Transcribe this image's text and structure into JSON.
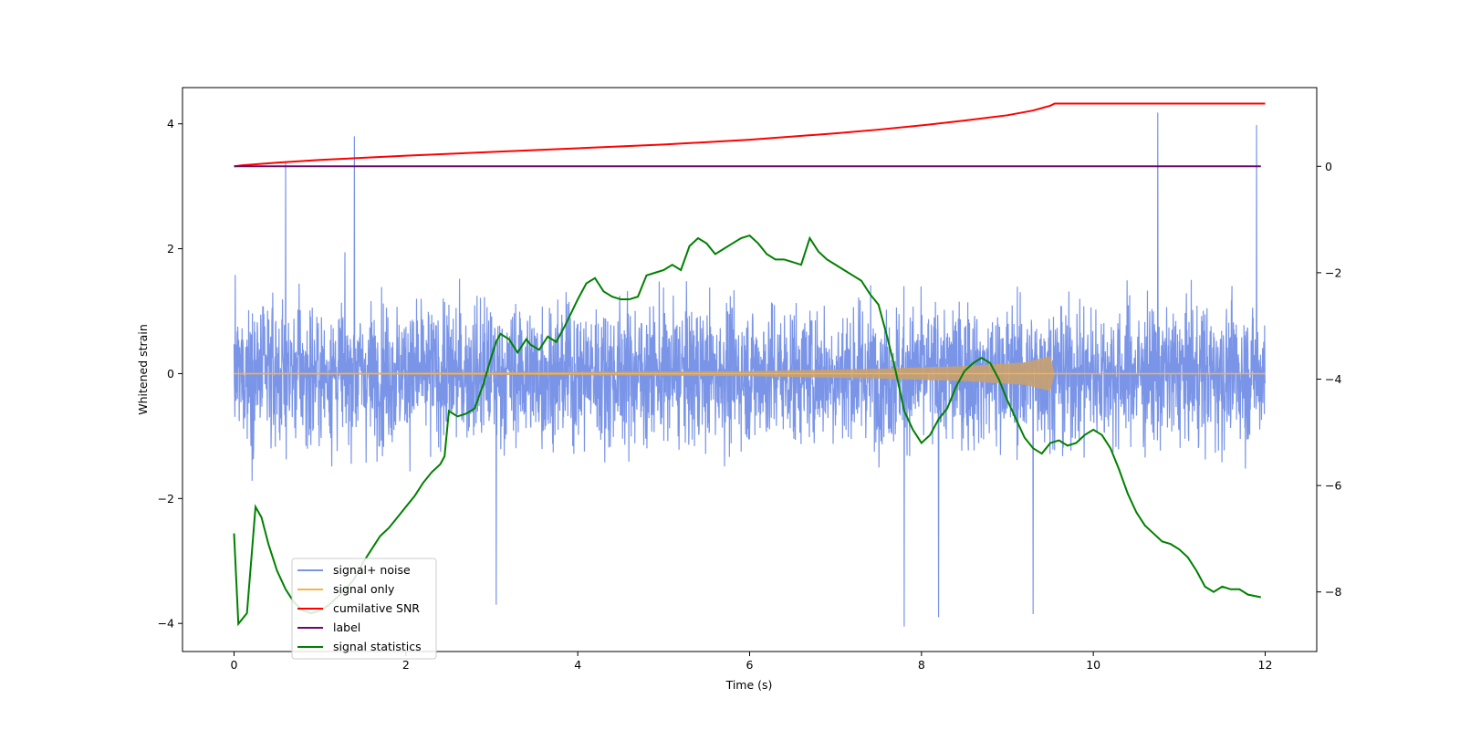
{
  "chart_data": {
    "type": "line",
    "title": "",
    "xlabel": "Time (s)",
    "ylabel": "Whitened strain",
    "y2label": "",
    "xlim": [
      -0.6,
      12.6
    ],
    "ylim": [
      -4.45,
      4.58
    ],
    "y2lim": [
      -9.12,
      1.48
    ],
    "xticks": [
      0,
      2,
      4,
      6,
      8,
      10,
      12
    ],
    "yticks": [
      -4,
      -2,
      0,
      2,
      4
    ],
    "y2ticks": [
      -8,
      -6,
      -4,
      -2,
      0
    ],
    "xtick_labels": [
      "0",
      "2",
      "4",
      "6",
      "8",
      "10",
      "12"
    ],
    "ytick_labels": [
      "−4",
      "−2",
      "0",
      "2",
      "4"
    ],
    "y2tick_labels": [
      "−8",
      "−6",
      "−4",
      "−2",
      "0"
    ],
    "legend": {
      "position": "lower-left",
      "entries": [
        "signal+ noise",
        "signal only",
        "cumilative SNR",
        "label",
        "signal statistics"
      ]
    },
    "series": [
      {
        "name": "signal+ noise",
        "axis": "left",
        "color": "#7a95e8",
        "description": "whitened noise samples, 0-12 s",
        "amplitude_typical": [
          -1.9,
          2.3
        ],
        "spikes": [
          [
            0.6,
            3.4
          ],
          [
            1.4,
            3.8
          ],
          [
            3.05,
            -3.7
          ],
          [
            7.8,
            -4.05
          ],
          [
            8.2,
            -3.9
          ],
          [
            9.3,
            -3.85
          ],
          [
            10.75,
            4.18
          ],
          [
            11.9,
            3.98
          ]
        ]
      },
      {
        "name": "signal only",
        "axis": "left",
        "color": "#f2b450",
        "description": "chirp signal growing in amplitude, merger at ~9.55 s",
        "envelope": [
          [
            0,
            0.01
          ],
          [
            3,
            0.02
          ],
          [
            6,
            0.04
          ],
          [
            7.5,
            0.08
          ],
          [
            8.5,
            0.12
          ],
          [
            9.2,
            0.18
          ],
          [
            9.5,
            0.28
          ],
          [
            9.55,
            0.0
          ],
          [
            12,
            0.0
          ]
        ]
      },
      {
        "name": "cumilative SNR",
        "axis": "right",
        "color": "#ff0000",
        "x": [
          0,
          0.1,
          0.5,
          1,
          2,
          3,
          4,
          5,
          6,
          7,
          7.5,
          8,
          8.5,
          9,
          9.3,
          9.5,
          9.55,
          10,
          11,
          12
        ],
        "y": [
          0,
          0.02,
          0.07,
          0.12,
          0.2,
          0.27,
          0.34,
          0.41,
          0.5,
          0.62,
          0.69,
          0.77,
          0.86,
          0.96,
          1.05,
          1.14,
          1.18,
          1.18,
          1.18,
          1.18
        ]
      },
      {
        "name": "label",
        "axis": "right",
        "color": "#6a0a6a",
        "x": [
          0,
          11.95
        ],
        "y": [
          0,
          0
        ]
      },
      {
        "name": "signal statistics",
        "axis": "right",
        "color": "#008000",
        "x": [
          0,
          0.05,
          0.15,
          0.25,
          0.32,
          0.4,
          0.5,
          0.6,
          0.7,
          0.8,
          0.9,
          1.0,
          1.1,
          1.2,
          1.3,
          1.4,
          1.5,
          1.6,
          1.7,
          1.8,
          1.9,
          2.0,
          2.1,
          2.2,
          2.3,
          2.4,
          2.45,
          2.5,
          2.6,
          2.7,
          2.8,
          2.9,
          3.0,
          3.05,
          3.1,
          3.2,
          3.3,
          3.4,
          3.45,
          3.55,
          3.65,
          3.75,
          3.85,
          4.0,
          4.1,
          4.2,
          4.3,
          4.4,
          4.5,
          4.6,
          4.7,
          4.8,
          4.9,
          5.0,
          5.1,
          5.2,
          5.3,
          5.4,
          5.5,
          5.6,
          5.7,
          5.8,
          5.9,
          6.0,
          6.1,
          6.2,
          6.3,
          6.4,
          6.5,
          6.6,
          6.7,
          6.8,
          6.9,
          7.0,
          7.1,
          7.2,
          7.3,
          7.4,
          7.5,
          7.6,
          7.7,
          7.8,
          7.9,
          8.0,
          8.1,
          8.2,
          8.3,
          8.4,
          8.5,
          8.6,
          8.7,
          8.8,
          8.9,
          9.0,
          9.1,
          9.2,
          9.3,
          9.4,
          9.5,
          9.6,
          9.7,
          9.8,
          9.9,
          10.0,
          10.1,
          10.2,
          10.3,
          10.4,
          10.5,
          10.6,
          10.7,
          10.8,
          10.9,
          11.0,
          11.1,
          11.2,
          11.3,
          11.4,
          11.5,
          11.6,
          11.7,
          11.8,
          11.95
        ],
        "y": [
          -6.9,
          -8.6,
          -8.4,
          -6.4,
          -6.6,
          -7.1,
          -7.6,
          -7.95,
          -8.2,
          -8.35,
          -8.4,
          -8.35,
          -8.25,
          -8.1,
          -7.95,
          -7.75,
          -7.45,
          -7.2,
          -6.95,
          -6.8,
          -6.6,
          -6.4,
          -6.2,
          -5.95,
          -5.75,
          -5.6,
          -5.45,
          -4.6,
          -4.7,
          -4.65,
          -4.55,
          -4.1,
          -3.55,
          -3.3,
          -3.15,
          -3.25,
          -3.5,
          -3.25,
          -3.35,
          -3.45,
          -3.2,
          -3.3,
          -3.0,
          -2.5,
          -2.2,
          -2.1,
          -2.35,
          -2.45,
          -2.5,
          -2.5,
          -2.45,
          -2.05,
          -2.0,
          -1.95,
          -1.85,
          -1.95,
          -1.5,
          -1.35,
          -1.45,
          -1.65,
          -1.55,
          -1.45,
          -1.35,
          -1.3,
          -1.45,
          -1.65,
          -1.75,
          -1.75,
          -1.8,
          -1.85,
          -1.35,
          -1.6,
          -1.75,
          -1.85,
          -1.95,
          -2.05,
          -2.15,
          -2.4,
          -2.6,
          -3.2,
          -3.85,
          -4.6,
          -4.95,
          -5.2,
          -5.05,
          -4.75,
          -4.55,
          -4.15,
          -3.85,
          -3.7,
          -3.6,
          -3.7,
          -4.0,
          -4.4,
          -4.75,
          -5.1,
          -5.3,
          -5.4,
          -5.2,
          -5.15,
          -5.25,
          -5.2,
          -5.05,
          -4.95,
          -5.05,
          -5.3,
          -5.7,
          -6.15,
          -6.5,
          -6.75,
          -6.9,
          -7.05,
          -7.1,
          -7.2,
          -7.35,
          -7.6,
          -7.9,
          -8.0,
          -7.9,
          -7.95,
          -7.95,
          -8.05,
          -8.1
        ]
      }
    ]
  }
}
